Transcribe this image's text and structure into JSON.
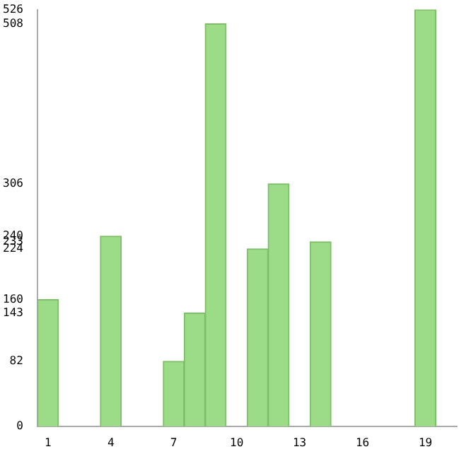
{
  "chart_data": {
    "type": "bar",
    "categories": [
      "1",
      null,
      null,
      "4",
      null,
      null,
      "7",
      null,
      null,
      "10",
      null,
      null,
      "13",
      null,
      null,
      "16",
      null,
      null,
      "19",
      null
    ],
    "values": [
      160,
      0,
      0,
      240,
      0,
      0,
      82,
      143,
      508,
      0,
      224,
      306,
      0,
      233,
      0,
      0,
      0,
      0,
      526,
      0
    ],
    "color": "#9ddc87",
    "ylim": [
      0,
      526
    ],
    "yticks": [
      0,
      82,
      143,
      160,
      224,
      233,
      240,
      306,
      508,
      526
    ],
    "grid": false,
    "legend": false
  }
}
